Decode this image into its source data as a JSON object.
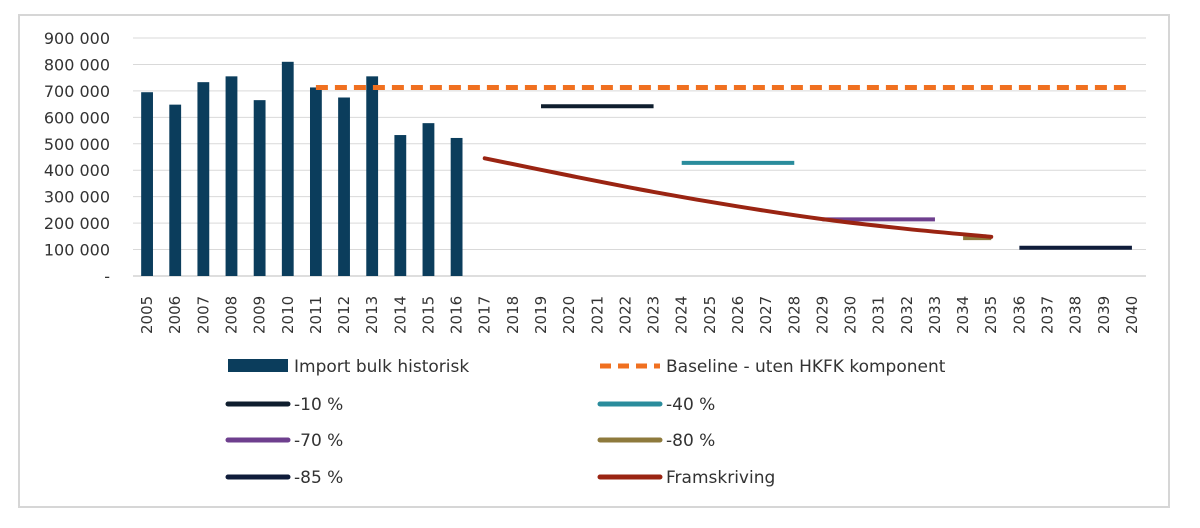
{
  "chart_data": {
    "type": "bar",
    "title": "",
    "xlabel": "",
    "ylabel": "",
    "ylim": [
      0,
      900000
    ],
    "yticks": [
      0,
      100000,
      200000,
      300000,
      400000,
      500000,
      600000,
      700000,
      800000,
      900000
    ],
    "ytick_labels": [
      "-",
      "100 000",
      "200 000",
      "300 000",
      "400 000",
      "500 000",
      "600 000",
      "700 000",
      "800 000",
      "900 000"
    ],
    "categories": [
      "2005",
      "2006",
      "2007",
      "2008",
      "2009",
      "2010",
      "2011",
      "2012",
      "2013",
      "2014",
      "2015",
      "2016",
      "2017",
      "2018",
      "2019",
      "2020",
      "2021",
      "2022",
      "2023",
      "2024",
      "2025",
      "2026",
      "2027",
      "2028",
      "2029",
      "2030",
      "2031",
      "2032",
      "2033",
      "2034",
      "2035",
      "2036",
      "2037",
      "2038",
      "2039",
      "2040"
    ],
    "grid": true,
    "legend_position": "bottom",
    "series": [
      {
        "name": "Import bulk historisk",
        "kind": "bar",
        "color": "#0b3d5c",
        "x": [
          "2005",
          "2006",
          "2007",
          "2008",
          "2009",
          "2010",
          "2011",
          "2012",
          "2013",
          "2014",
          "2015",
          "2016"
        ],
        "values": [
          695000,
          648000,
          733000,
          755000,
          665000,
          810000,
          713000,
          675000,
          755000,
          533000,
          578000,
          522000
        ]
      },
      {
        "name": "Baseline - uten HKFK komponent",
        "kind": "dashed-line",
        "color": "#f07020",
        "x": [
          "2011",
          "2040"
        ],
        "values": [
          713000,
          713000
        ]
      },
      {
        "name": "-10 %",
        "kind": "line",
        "color": "#0f1e2e",
        "x": [
          "2019",
          "2023"
        ],
        "values": [
          642000,
          642000
        ]
      },
      {
        "name": "-40 %",
        "kind": "line",
        "color": "#2a8c9c",
        "x": [
          "2024",
          "2028"
        ],
        "values": [
          428000,
          428000
        ]
      },
      {
        "name": "-70 %",
        "kind": "line",
        "color": "#6e3f8e",
        "x": [
          "2029",
          "2033"
        ],
        "values": [
          214000,
          214000
        ]
      },
      {
        "name": "-80 %",
        "kind": "line",
        "color": "#8e7a3c",
        "x": [
          "2034",
          "2035"
        ],
        "values": [
          143000,
          143000
        ]
      },
      {
        "name": "-85 %",
        "kind": "line",
        "color": "#0f1c3a",
        "x": [
          "2036",
          "2040"
        ],
        "values": [
          107000,
          107000
        ]
      },
      {
        "name": "Framskriving",
        "kind": "curve",
        "color": "#9a2412",
        "x": [
          "2017",
          "2020",
          "2023",
          "2026",
          "2029",
          "2032",
          "2035"
        ],
        "values": [
          445000,
          380000,
          318000,
          263000,
          215000,
          178000,
          148000
        ]
      }
    ]
  }
}
